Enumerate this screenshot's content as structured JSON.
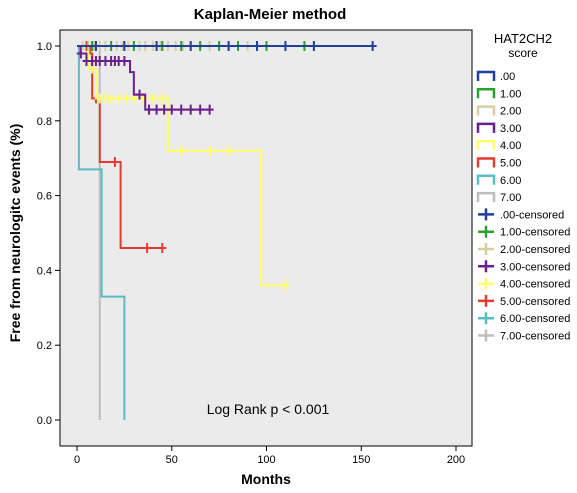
{
  "chart_data": {
    "type": "kaplan-meier",
    "title": "Kaplan-Meier method",
    "xlabel": "Months",
    "ylabel": "Free from neurologitc events (%)",
    "xlim": [
      0,
      200
    ],
    "ylim": [
      0,
      1
    ],
    "x_ticks": [
      "0",
      "50",
      "100",
      "150",
      "200"
    ],
    "y_ticks": [
      "0.0",
      "0.2",
      "0.4",
      "0.6",
      "0.8",
      "1.0"
    ],
    "grid": false,
    "legend_position": "right",
    "legend_title_line1": "HAT2CH2",
    "legend_title_line2": "score",
    "annotation": "Log Rank p < 0.001",
    "plot_background": "#ebebeb",
    "series": [
      {
        "name": ".00",
        "color": "#1f3f9a",
        "steps": [
          [
            0,
            1.0
          ],
          [
            156,
            1.0
          ]
        ],
        "censored": [
          [
            10,
            1.0
          ],
          [
            25,
            1.0
          ],
          [
            42,
            1.0
          ],
          [
            60,
            1.0
          ],
          [
            80,
            1.0
          ],
          [
            95,
            1.0
          ],
          [
            110,
            1.0
          ],
          [
            125,
            1.0
          ],
          [
            156,
            1.0
          ]
        ]
      },
      {
        "name": "1.00",
        "color": "#2ca02c",
        "steps": [
          [
            0,
            1.0
          ],
          [
            120,
            1.0
          ]
        ],
        "censored": [
          [
            8,
            1.0
          ],
          [
            18,
            1.0
          ],
          [
            30,
            1.0
          ],
          [
            45,
            1.0
          ],
          [
            55,
            1.0
          ],
          [
            65,
            1.0
          ],
          [
            75,
            1.0
          ],
          [
            85,
            1.0
          ],
          [
            100,
            1.0
          ],
          [
            120,
            1.0
          ]
        ]
      },
      {
        "name": "2.00",
        "color": "#d8cfa0",
        "steps": [
          [
            0,
            1.0
          ],
          [
            95,
            1.0
          ]
        ],
        "censored": [
          [
            3,
            1.0
          ],
          [
            6,
            1.0
          ],
          [
            9,
            1.0
          ],
          [
            12,
            1.0
          ],
          [
            15,
            1.0
          ],
          [
            18,
            1.0
          ],
          [
            21,
            1.0
          ],
          [
            24,
            1.0
          ],
          [
            27,
            1.0
          ],
          [
            30,
            1.0
          ],
          [
            33,
            1.0
          ],
          [
            36,
            1.0
          ],
          [
            40,
            1.0
          ],
          [
            44,
            1.0
          ],
          [
            48,
            1.0
          ],
          [
            52,
            1.0
          ],
          [
            56,
            1.0
          ],
          [
            60,
            1.0
          ],
          [
            65,
            1.0
          ],
          [
            70,
            1.0
          ],
          [
            75,
            1.0
          ],
          [
            80,
            1.0
          ],
          [
            85,
            1.0
          ],
          [
            90,
            1.0
          ],
          [
            95,
            1.0
          ]
        ]
      },
      {
        "name": "3.00",
        "color": "#6a1f8a",
        "steps": [
          [
            0,
            1.0
          ],
          [
            2,
            0.98
          ],
          [
            5,
            0.96
          ],
          [
            28,
            0.93
          ],
          [
            30,
            0.87
          ],
          [
            35,
            0.87
          ],
          [
            36,
            0.83
          ],
          [
            70,
            0.83
          ]
        ],
        "censored": [
          [
            2,
            0.98
          ],
          [
            5,
            0.96
          ],
          [
            8,
            0.96
          ],
          [
            10,
            0.96
          ],
          [
            12,
            0.96
          ],
          [
            15,
            0.96
          ],
          [
            18,
            0.96
          ],
          [
            20,
            0.96
          ],
          [
            22,
            0.96
          ],
          [
            25,
            0.96
          ],
          [
            33,
            0.87
          ],
          [
            38,
            0.83
          ],
          [
            42,
            0.83
          ],
          [
            46,
            0.83
          ],
          [
            50,
            0.83
          ],
          [
            55,
            0.83
          ],
          [
            60,
            0.83
          ],
          [
            65,
            0.83
          ],
          [
            70,
            0.83
          ]
        ]
      },
      {
        "name": "4.00",
        "color": "#ffff66",
        "steps": [
          [
            0,
            1.0
          ],
          [
            6,
            0.94
          ],
          [
            10,
            0.86
          ],
          [
            47,
            0.86
          ],
          [
            48,
            0.72
          ],
          [
            96,
            0.72
          ],
          [
            97,
            0.36
          ],
          [
            110,
            0.36
          ]
        ],
        "censored": [
          [
            8,
            0.94
          ],
          [
            12,
            0.86
          ],
          [
            15,
            0.86
          ],
          [
            18,
            0.86
          ],
          [
            22,
            0.86
          ],
          [
            26,
            0.86
          ],
          [
            30,
            0.86
          ],
          [
            35,
            0.86
          ],
          [
            40,
            0.86
          ],
          [
            45,
            0.86
          ],
          [
            55,
            0.72
          ],
          [
            70,
            0.72
          ],
          [
            80,
            0.72
          ],
          [
            110,
            0.36
          ]
        ]
      },
      {
        "name": "5.00",
        "color": "#e03c31",
        "steps": [
          [
            0,
            1.0
          ],
          [
            7,
            0.98
          ],
          [
            8,
            0.86
          ],
          [
            11,
            0.86
          ],
          [
            12,
            0.69
          ],
          [
            22,
            0.69
          ],
          [
            23,
            0.46
          ],
          [
            45,
            0.46
          ]
        ],
        "censored": [
          [
            5,
            1.0
          ],
          [
            10,
            0.86
          ],
          [
            20,
            0.69
          ],
          [
            37,
            0.46
          ],
          [
            45,
            0.46
          ]
        ]
      },
      {
        "name": "6.00",
        "color": "#5bbcc4",
        "steps": [
          [
            0,
            1.0
          ],
          [
            1,
            0.67
          ],
          [
            12,
            0.67
          ],
          [
            13,
            0.33
          ],
          [
            25,
            0.33
          ],
          [
            25,
            0.0
          ]
        ],
        "censored": []
      },
      {
        "name": "7.00",
        "color": "#bdbdbd",
        "steps": [
          [
            0,
            1.0
          ],
          [
            12,
            1.0
          ],
          [
            12,
            0.0
          ]
        ],
        "censored": []
      }
    ],
    "legend_entries": [
      {
        "label": ".00",
        "color": "#1f3f9a",
        "kind": "line"
      },
      {
        "label": "1.00",
        "color": "#2ca02c",
        "kind": "line"
      },
      {
        "label": "2.00",
        "color": "#d8cfa0",
        "kind": "line"
      },
      {
        "label": "3.00",
        "color": "#6a1f8a",
        "kind": "line"
      },
      {
        "label": "4.00",
        "color": "#ffff66",
        "kind": "line"
      },
      {
        "label": "5.00",
        "color": "#e03c31",
        "kind": "line"
      },
      {
        "label": "6.00",
        "color": "#5bbcc4",
        "kind": "line"
      },
      {
        "label": "7.00",
        "color": "#bdbdbd",
        "kind": "line"
      },
      {
        "label": ".00-censored",
        "color": "#1f3f9a",
        "kind": "cross"
      },
      {
        "label": "1.00-censored",
        "color": "#2ca02c",
        "kind": "cross"
      },
      {
        "label": "2.00-censored",
        "color": "#d8cfa0",
        "kind": "cross"
      },
      {
        "label": "3.00-censored",
        "color": "#6a1f8a",
        "kind": "cross"
      },
      {
        "label": "4.00-censored",
        "color": "#ffff66",
        "kind": "cross"
      },
      {
        "label": "5.00-censored",
        "color": "#e03c31",
        "kind": "cross"
      },
      {
        "label": "6.00-censored",
        "color": "#5bbcc4",
        "kind": "cross"
      },
      {
        "label": "7.00-censored",
        "color": "#bdbdbd",
        "kind": "cross"
      }
    ]
  }
}
